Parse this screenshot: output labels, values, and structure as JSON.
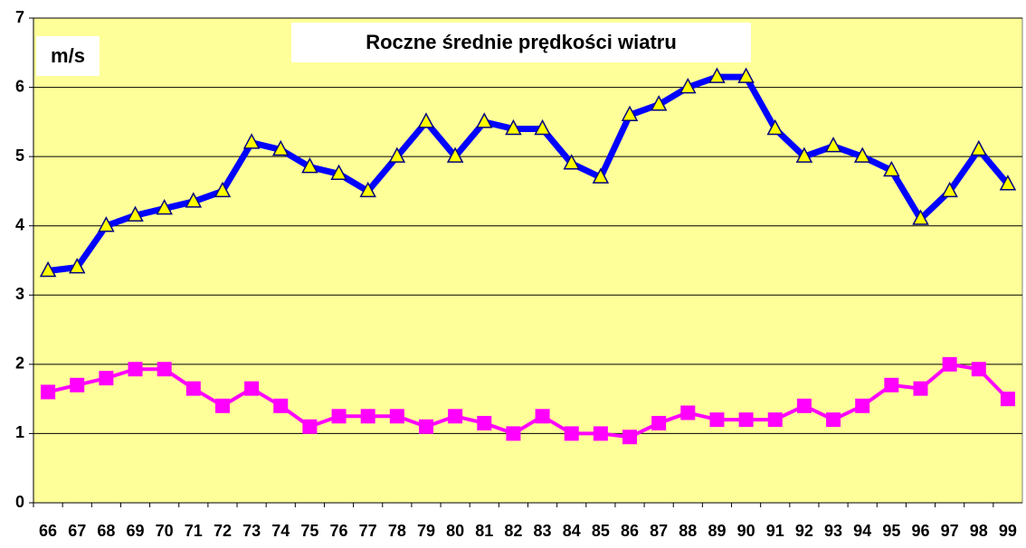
{
  "chart_data": {
    "type": "line",
    "title": "Roczne średnie prędkości wiatru",
    "y_label": "m/s",
    "categories": [
      "66",
      "67",
      "68",
      "69",
      "70",
      "71",
      "72",
      "73",
      "74",
      "75",
      "76",
      "77",
      "78",
      "79",
      "80",
      "81",
      "82",
      "83",
      "84",
      "85",
      "86",
      "87",
      "88",
      "89",
      "90",
      "91",
      "92",
      "93",
      "94",
      "95",
      "96",
      "97",
      "98",
      "99"
    ],
    "series": [
      {
        "color": "#0000ff",
        "marker": "triangle",
        "values": [
          3.35,
          3.4,
          4.0,
          4.15,
          4.25,
          4.35,
          4.5,
          5.2,
          5.1,
          4.85,
          4.75,
          4.5,
          5.0,
          5.5,
          5.0,
          5.5,
          5.4,
          5.4,
          4.9,
          4.7,
          5.6,
          5.75,
          6.0,
          6.15,
          6.15,
          5.4,
          5.0,
          5.15,
          5.0,
          4.8,
          4.1,
          4.5,
          5.1,
          4.6
        ]
      },
      {
        "color": "#ff00ff",
        "marker": "square",
        "values": [
          1.6,
          1.7,
          1.8,
          1.93,
          1.93,
          1.65,
          1.4,
          1.65,
          1.4,
          1.1,
          1.25,
          1.25,
          1.25,
          1.1,
          1.25,
          1.15,
          1.0,
          1.25,
          1.0,
          1.0,
          0.95,
          1.15,
          1.3,
          1.2,
          1.2,
          1.2,
          1.4,
          1.2,
          1.4,
          1.7,
          1.65,
          2.0,
          1.93,
          1.5
        ]
      }
    ],
    "ylim": [
      0,
      7
    ],
    "yticks": [
      0,
      1,
      2,
      3,
      4,
      5,
      6,
      7
    ],
    "grid": true,
    "plot_background": "#ffff99"
  }
}
